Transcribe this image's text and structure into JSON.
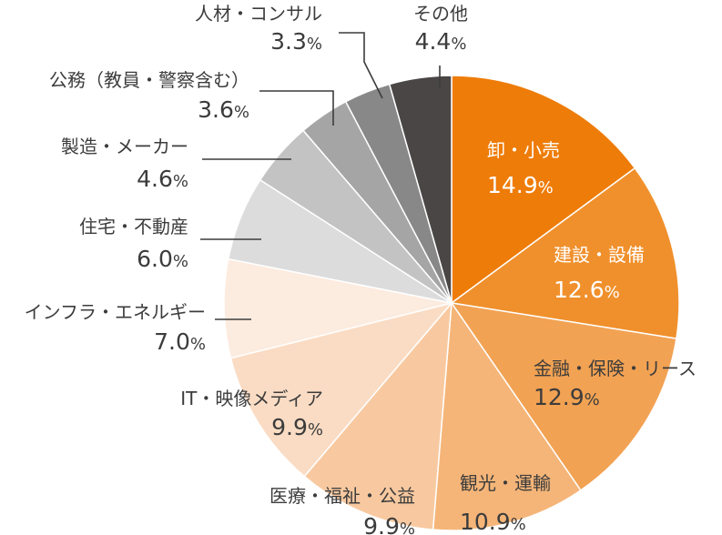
{
  "chart_data": {
    "type": "pie",
    "title": "",
    "start_angle_deg": 0,
    "direction": "clockwise",
    "unit": "%",
    "slices": [
      {
        "name": "卸・小売",
        "value": 14.9,
        "value_text": "14.9",
        "color": "#ee7c08",
        "label_color": "#ffffff",
        "label_inside": true
      },
      {
        "name": "建設・設備",
        "value": 12.6,
        "value_text": "12.6",
        "color": "#f0902c",
        "label_color": "#ffffff",
        "label_inside": true
      },
      {
        "name": "金融・保険・リース",
        "value": 12.9,
        "value_text": "12.9",
        "color": "#f2a253",
        "label_color": "#3c3c3c",
        "label_inside": true
      },
      {
        "name": "観光・運輸",
        "value": 10.9,
        "value_text": "10.9",
        "color": "#f5b578",
        "label_color": "#3c3c3c",
        "label_inside": true
      },
      {
        "name": "医療・福祉・公益",
        "value": 9.9,
        "value_text": "9.9",
        "color": "#f8c9a0",
        "label_color": "#3c3c3c",
        "label_inside": true
      },
      {
        "name": "IT・映像メディア",
        "value": 9.9,
        "value_text": "9.9",
        "color": "#fadcc4",
        "label_color": "#3c3c3c",
        "label_inside": true
      },
      {
        "name": "インフラ・エネルギー",
        "value": 7.0,
        "value_text": "7.0",
        "color": "#fcebdf",
        "label_color": "#3c3c3c",
        "label_inside": false
      },
      {
        "name": "住宅・不動産",
        "value": 6.0,
        "value_text": "6.0",
        "color": "#dcdcdc",
        "label_color": "#3c3c3c",
        "label_inside": false
      },
      {
        "name": "製造・メーカー",
        "value": 4.6,
        "value_text": "4.6",
        "color": "#c3c3c3",
        "label_color": "#3c3c3c",
        "label_inside": false
      },
      {
        "name": "公務（教員・警察含む）",
        "value": 3.6,
        "value_text": "3.6",
        "color": "#a5a5a5",
        "label_color": "#3c3c3c",
        "label_inside": false
      },
      {
        "name": "人材・コンサル",
        "value": 3.3,
        "value_text": "3.3",
        "color": "#888888",
        "label_color": "#3c3c3c",
        "label_inside": false
      },
      {
        "name": "その他",
        "value": 4.4,
        "value_text": "4.4",
        "color": "#4a4646",
        "label_color": "#3c3c3c",
        "label_inside": false
      }
    ]
  }
}
